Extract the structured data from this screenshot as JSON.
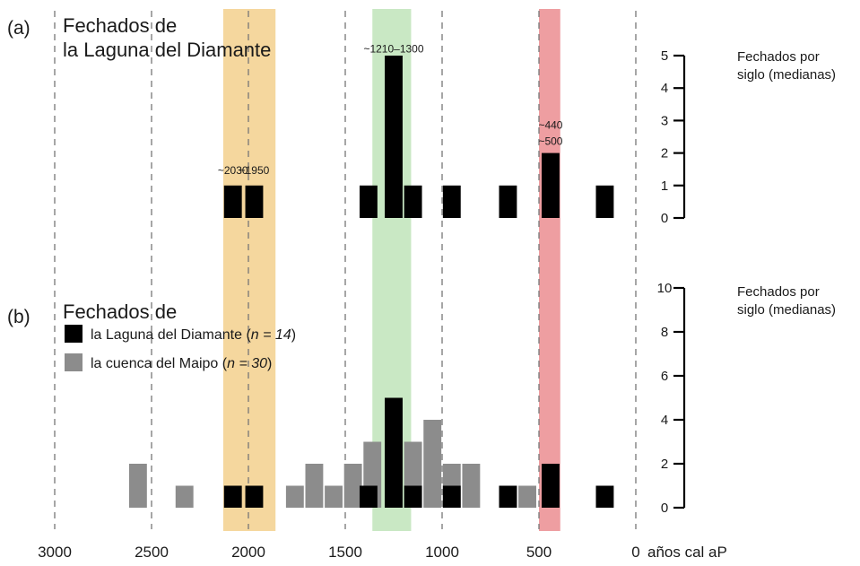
{
  "chart_data": {
    "type": "bar",
    "x_axis": {
      "label": "años cal aP",
      "lim": [
        3000,
        0
      ],
      "reversed": true,
      "ticks": [
        3000,
        2500,
        2000,
        1500,
        1000,
        500,
        0
      ],
      "tick_labels": [
        "3000",
        "2500",
        "2000",
        "1500",
        "1000",
        "500",
        "0"
      ],
      "bin_width": 100
    },
    "highlight_bands": [
      {
        "from": 2130,
        "to": 1860,
        "color": "#f5d79e"
      },
      {
        "from": 1360,
        "to": 1160,
        "color": "#c9e8c4"
      },
      {
        "from": 500,
        "to": 390,
        "color": "#ee9ea1"
      }
    ],
    "panels": [
      {
        "label": "(a)",
        "title_lines": [
          "Fechados de",
          "la Laguna del Diamante"
        ],
        "ylabel_lines": [
          "Fechados por",
          "siglo (medianas)"
        ],
        "ylim": [
          0,
          5
        ],
        "yticks": [
          0,
          1,
          2,
          3,
          4,
          5
        ],
        "series": [
          {
            "name": "",
            "color": "#000000",
            "bins": [
              {
                "x": 2080,
                "value": 1
              },
              {
                "x": 1970,
                "value": 1
              },
              {
                "x": 1380,
                "value": 1
              },
              {
                "x": 1250,
                "value": 5
              },
              {
                "x": 1150,
                "value": 1
              },
              {
                "x": 950,
                "value": 1
              },
              {
                "x": 660,
                "value": 1
              },
              {
                "x": 440,
                "value": 2
              },
              {
                "x": 160,
                "value": 1
              }
            ]
          }
        ],
        "annotations": [
          {
            "text": "~2030",
            "x": 2080,
            "y": 1.35
          },
          {
            "text": "~1950",
            "x": 1970,
            "y": 1.35
          },
          {
            "text": "~1210–1300",
            "x": 1250,
            "y": 5.1
          },
          {
            "text": "~440",
            "x": 440,
            "y": 2.75
          },
          {
            "text": "~500",
            "x": 440,
            "y": 2.25
          }
        ]
      },
      {
        "label": "(b)",
        "title_lines": [
          "Fechados de"
        ],
        "ylabel_lines": [
          "Fechados por",
          "siglo (medianas)"
        ],
        "ylim": [
          0,
          10
        ],
        "yticks": [
          0,
          2,
          4,
          6,
          8,
          10
        ],
        "legend": [
          {
            "prefix": "la Laguna del Diamante (",
            "detail": "n = 14",
            "suffix": ")",
            "color": "#000000"
          },
          {
            "prefix": "la cuenca del Maipo (",
            "detail": "n = 30",
            "suffix": ")",
            "color": "#8c8c8c"
          }
        ],
        "series": [
          {
            "name": "la Laguna del Diamante",
            "color": "#000000",
            "bins": [
              {
                "x": 2080,
                "value": 1
              },
              {
                "x": 1970,
                "value": 1
              },
              {
                "x": 1380,
                "value": 1
              },
              {
                "x": 1250,
                "value": 5
              },
              {
                "x": 1150,
                "value": 1
              },
              {
                "x": 950,
                "value": 1
              },
              {
                "x": 660,
                "value": 1
              },
              {
                "x": 440,
                "value": 2
              },
              {
                "x": 160,
                "value": 1
              }
            ]
          },
          {
            "name": "la cuenca del Maipo",
            "color": "#8c8c8c",
            "bins": [
              {
                "x": 2570,
                "value": 2
              },
              {
                "x": 2330,
                "value": 1
              },
              {
                "x": 1760,
                "value": 1
              },
              {
                "x": 1660,
                "value": 2
              },
              {
                "x": 1560,
                "value": 1
              },
              {
                "x": 1460,
                "value": 2
              },
              {
                "x": 1360,
                "value": 3
              },
              {
                "x": 1250,
                "value": 5
              },
              {
                "x": 1150,
                "value": 3
              },
              {
                "x": 1050,
                "value": 4
              },
              {
                "x": 950,
                "value": 2
              },
              {
                "x": 850,
                "value": 2
              },
              {
                "x": 660,
                "value": 1
              },
              {
                "x": 560,
                "value": 1
              }
            ]
          }
        ]
      }
    ]
  }
}
